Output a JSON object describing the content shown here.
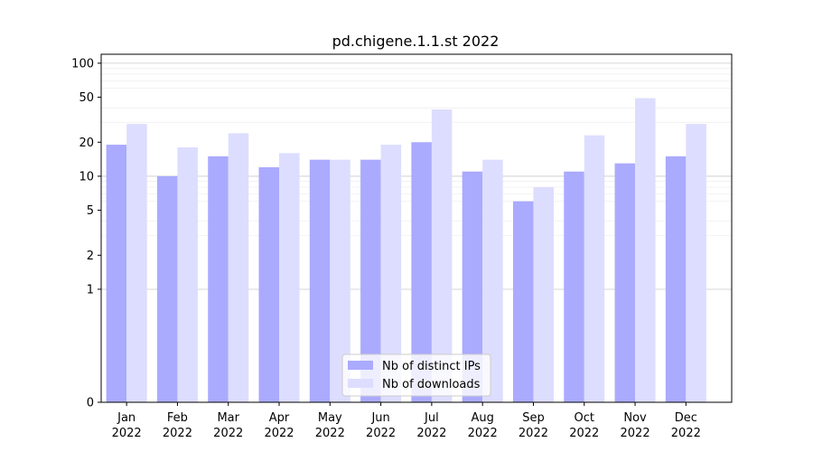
{
  "chart_data": {
    "type": "bar",
    "title": "pd.chigene.1.1.st 2022",
    "xlabel": "",
    "ylabel": "",
    "y_scale": "symlog",
    "ylim": [
      0,
      120
    ],
    "y_ticks": [
      0,
      1,
      2,
      5,
      10,
      20,
      50,
      100
    ],
    "y_tick_labels": [
      "0",
      "1",
      "2",
      "5",
      "10",
      "20",
      "50",
      "100"
    ],
    "grid": true,
    "legend_position": "bottom-center",
    "categories": [
      "Jan\n2022",
      "Feb\n2022",
      "Mar\n2022",
      "Apr\n2022",
      "May\n2022",
      "Jun\n2022",
      "Jul\n2022",
      "Aug\n2022",
      "Sep\n2022",
      "Oct\n2022",
      "Nov\n2022",
      "Dec\n2022"
    ],
    "series": [
      {
        "name": "Nb of distinct IPs",
        "color": "#aaaaff",
        "values": [
          19,
          10,
          15,
          12,
          14,
          14,
          20,
          11,
          6,
          11,
          13,
          15
        ]
      },
      {
        "name": "Nb of downloads",
        "color": "#ddddff",
        "values": [
          29,
          18,
          24,
          16,
          14,
          19,
          39,
          14,
          8,
          23,
          49,
          29
        ]
      }
    ]
  }
}
